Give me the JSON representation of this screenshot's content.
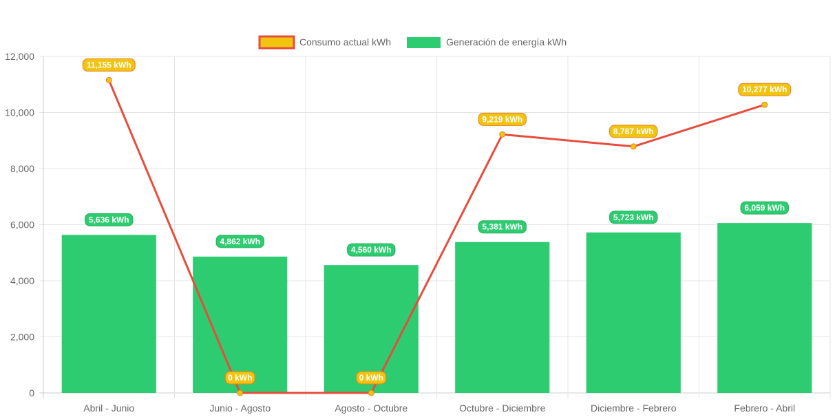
{
  "chart_data": {
    "type": "bar",
    "categories": [
      "Abril - Junio",
      "Junio - Agosto",
      "Agosto - Octubre",
      "Octubre - Diciembre",
      "Diciembre - Febrero",
      "Febrero - Abril"
    ],
    "series": [
      {
        "name": "Consumo actual kWh",
        "type": "line",
        "values": [
          11155,
          0,
          0,
          9219,
          8787,
          10277
        ],
        "labels": [
          "11,155 kWh",
          "0 kWh",
          "0 kWh",
          "9,219 kWh",
          "8,787 kWh",
          "10,277 kWh"
        ],
        "line_color": "#e74c3c",
        "point_color": "#f1c40f",
        "label_bg": "#f1c40f",
        "label_border": "#e67e22"
      },
      {
        "name": "Generación de energía kWh",
        "type": "bar",
        "values": [
          5636,
          4862,
          4560,
          5381,
          5723,
          6059
        ],
        "labels": [
          "5,636 kWh",
          "4,862 kWh",
          "4,560 kWh",
          "5,381 kWh",
          "5,723 kWh",
          "6,059 kWh"
        ],
        "color": "#2ecc71",
        "label_bg": "#2ecc71",
        "label_border": "#27ae60"
      }
    ],
    "y_ticks": [
      "0",
      "2,000",
      "4,000",
      "6,000",
      "8,000",
      "10,000",
      "12,000"
    ],
    "ylim": [
      0,
      12000
    ],
    "title": "",
    "xlabel": "",
    "ylabel": "",
    "grid": true,
    "legend": "top-center",
    "colors": {
      "grid": "#e5e5e5",
      "axis": "#cccccc"
    }
  }
}
